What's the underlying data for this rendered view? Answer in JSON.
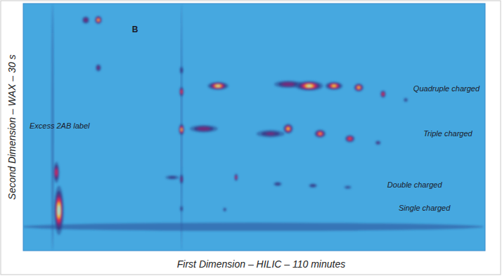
{
  "chart_data": {
    "type": "heatmap",
    "x_label": "First Dimension – HILIC – 110 minutes",
    "y_label": "Second Dimension – WAX – 30 s",
    "xlim": [
      0,
      110
    ],
    "ylim": [
      0,
      30
    ],
    "tick_labels": false,
    "grid": false,
    "x": [
      54.7,
      7.0,
      37.7,
      8.5,
      7.9,
      17.9,
      14.9,
      17.9,
      37.7,
      37.7,
      37.7,
      37.7,
      37.7,
      46.4,
      43.0,
      63.1,
      68.1,
      74.0,
      79.9,
      85.7,
      91.1,
      58.9,
      63.1,
      70.7,
      77.8,
      84.5,
      50.7,
      35.5,
      60.6,
      69.0,
      77.3,
      48.0
    ],
    "y": [
      2.9,
      15.0,
      15.0,
      4.9,
      9.5,
      28.0,
      28.0,
      22.2,
      19.3,
      14.7,
      21.9,
      8.7,
      5.1,
      20.0,
      14.8,
      20.2,
      20.0,
      20.0,
      19.8,
      19.0,
      18.3,
      14.2,
      14.8,
      14.2,
      13.6,
      13.1,
      8.9,
      8.9,
      8.1,
      7.9,
      7.7,
      5.0
    ],
    "intensity": [
      0.3,
      0.28,
      0.25,
      1.0,
      0.7,
      0.9,
      0.6,
      0.55,
      0.8,
      0.9,
      0.45,
      0.6,
      0.4,
      0.95,
      0.6,
      0.6,
      0.95,
      0.9,
      0.9,
      0.75,
      0.4,
      0.5,
      0.9,
      0.85,
      0.8,
      0.5,
      0.7,
      0.4,
      0.45,
      0.45,
      0.35,
      0.4
    ],
    "x_width": [
      110,
      0.5,
      0.35,
      2.3,
      1.4,
      1.7,
      1.7,
      1.3,
      1.0,
      1.3,
      0.8,
      0.8,
      0.7,
      5.0,
      6.7,
      6.7,
      6.7,
      4.2,
      2.3,
      1.3,
      1.0,
      6.7,
      2.3,
      2.7,
      2.3,
      1.3,
      0.8,
      3.3,
      2.0,
      2.0,
      1.7,
      0.8
    ],
    "y_width": [
      1.0,
      30,
      30,
      6.0,
      2.6,
      1.0,
      0.9,
      0.9,
      1.2,
      1.4,
      0.9,
      1.2,
      0.7,
      1.0,
      0.9,
      0.9,
      1.2,
      1.0,
      1.0,
      0.9,
      0.5,
      0.9,
      1.2,
      1.0,
      0.9,
      0.5,
      0.9,
      0.5,
      0.5,
      0.5,
      0.4,
      0.5
    ],
    "annotations": [
      {
        "text": "B",
        "x": 25.9,
        "y": 26.8
      },
      {
        "text": "Excess 2AB label",
        "x": 1.5,
        "y": 15.1
      },
      {
        "text": "Quadruple charged",
        "x": 92.9,
        "y": 19.6
      },
      {
        "text": "Triple charged",
        "x": 95.3,
        "y": 14.1
      },
      {
        "text": "Double charged",
        "x": 86.7,
        "y": 7.9
      },
      {
        "text": "Single charged",
        "x": 89.4,
        "y": 5.1
      }
    ]
  }
}
